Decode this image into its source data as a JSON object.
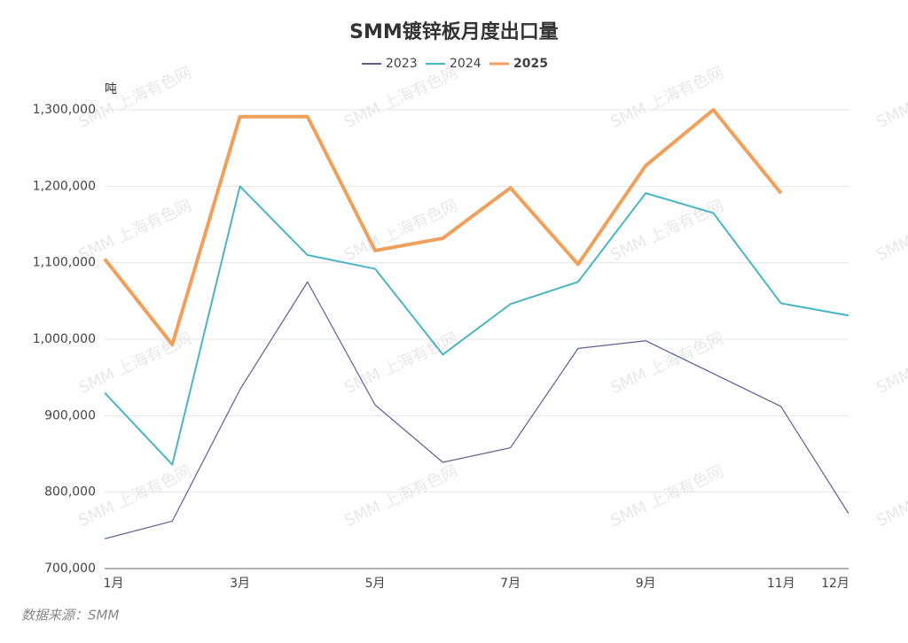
{
  "chart_data": {
    "type": "line",
    "title": "SMM镀锌板月度出口量",
    "y_unit": "吨",
    "source": "数据来源：SMM",
    "watermark": "SMM 上海有色网",
    "categories": [
      "1月",
      null,
      "3月",
      null,
      "5月",
      null,
      "7月",
      null,
      "9月",
      null,
      "11月",
      "12月"
    ],
    "series": [
      {
        "name": "2023",
        "color": "#5a6190",
        "values": [
          739000,
          762000,
          934000,
          1075000,
          914000,
          839000,
          858000,
          988000,
          998000,
          955000,
          912000,
          772000
        ]
      },
      {
        "name": "2024",
        "color": "#4ab5c4",
        "values": [
          930000,
          836000,
          1200000,
          1110000,
          1092000,
          980000,
          1046000,
          1075000,
          1191000,
          1165000,
          1047000,
          1031000
        ]
      },
      {
        "name": "2025",
        "color": "#f0a05a",
        "values": [
          1105000,
          993000,
          1291000,
          1291000,
          1116000,
          1132000,
          1198000,
          1098000,
          1227000,
          1300000,
          1191000,
          null
        ]
      }
    ],
    "ylim": [
      700000,
      1300000
    ],
    "yticks": [
      {
        "value": 700000,
        "label": "700,000"
      },
      {
        "value": 800000,
        "label": "800,000"
      },
      {
        "value": 900000,
        "label": "900,000"
      },
      {
        "value": 1000000,
        "label": "1,000,000"
      },
      {
        "value": 1100000,
        "label": "1,100,000"
      },
      {
        "value": 1200000,
        "label": "1,200,000"
      },
      {
        "value": 1300000,
        "label": "1,300,000"
      }
    ],
    "grid": true,
    "legend": "top"
  }
}
